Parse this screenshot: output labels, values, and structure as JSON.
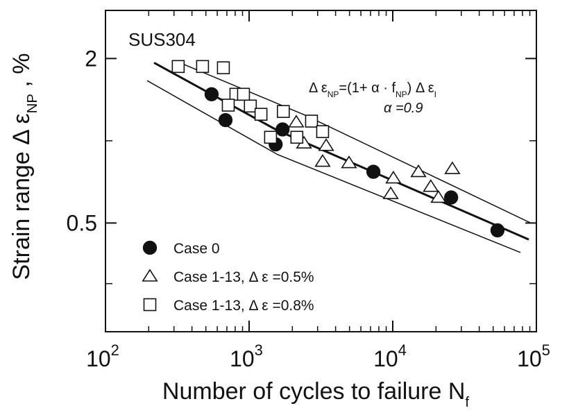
{
  "chart_data": {
    "type": "scatter",
    "xlog": true,
    "ylog": true,
    "xlim": [
      100,
      100000
    ],
    "ylim": [
      0.2,
      3
    ],
    "xticks": [
      {
        "value": 100,
        "label": "10",
        "exponent": "2"
      },
      {
        "value": 1000,
        "label": "10",
        "exponent": "3"
      },
      {
        "value": 10000,
        "label": "10",
        "exponent": "4"
      },
      {
        "value": 100000,
        "label": "10",
        "exponent": "5"
      }
    ],
    "yticks": [
      {
        "value": 2,
        "label": "2"
      },
      {
        "value": 0.5,
        "label": "0.5"
      }
    ],
    "y_minor_ticks": [
      1,
      0.3
    ],
    "xlabel": [
      {
        "t": "Number  of  cycles  to  failure   N"
      },
      {
        "t": "f",
        "sub": true
      }
    ],
    "ylabel": [
      {
        "t": "Strain  range   Δ ε"
      },
      {
        "t": "NP",
        "sub": true
      },
      {
        "t": " ,   %"
      }
    ],
    "annotations": {
      "material": "SUS304",
      "formula": [
        {
          "t": "Δ ε"
        },
        {
          "t": "NP",
          "sub": true
        },
        {
          "t": "=(1+ α · f"
        },
        {
          "t": "NP",
          "sub": true
        },
        {
          "t": ") Δ ε"
        },
        {
          "t": "I",
          "sub": true
        }
      ],
      "alpha": "α =0.9"
    },
    "series": [
      {
        "name": "Case 0",
        "marker": "circle",
        "filled": true,
        "x": [
          548,
          685,
          1530,
          1710,
          7330,
          25500,
          53600
        ],
        "values": [
          1.48,
          1.19,
          0.97,
          1.1,
          0.77,
          0.62,
          0.47
        ]
      },
      {
        "name": "Case 1-13,   Δ ε =0.5%",
        "marker": "triangle",
        "filled": false,
        "x": [
          2130,
          2410,
          3440,
          3250,
          4960,
          10100,
          9680,
          15100,
          26000,
          18400,
          20800
        ],
        "values": [
          1.17,
          0.98,
          0.96,
          0.84,
          0.83,
          0.73,
          0.64,
          0.77,
          0.79,
          0.68,
          0.62
        ]
      },
      {
        "name": "Case 1-13,   Δ ε =0.8%",
        "marker": "square",
        "filled": false,
        "x": [
          321,
          474,
          662,
          809,
          716,
          914,
          1020,
          1210,
          1730,
          1410,
          2150,
          2720,
          3250
        ],
        "values": [
          1.87,
          1.87,
          1.85,
          1.48,
          1.35,
          1.48,
          1.34,
          1.25,
          1.28,
          1.03,
          1.03,
          1.18,
          1.08
        ]
      }
    ],
    "lines": [
      {
        "width": 3,
        "x": [
          218,
          1580,
          88500
        ],
        "values": [
          1.93,
          1.09,
          0.435
        ]
      },
      {
        "width": 1.5,
        "x": [
          315,
          2460,
          91400
        ],
        "values": [
          1.95,
          1.24,
          0.5
        ]
      },
      {
        "width": 1.5,
        "x": [
          195,
          1580,
          77400
        ],
        "values": [
          1.66,
          0.89,
          0.39
        ]
      }
    ]
  }
}
